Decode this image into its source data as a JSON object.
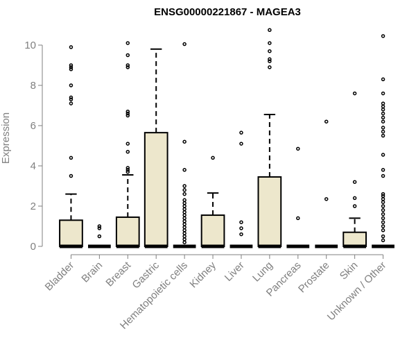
{
  "chart_data": {
    "type": "boxplot",
    "title": "ENSG00000221867 - MAGEA3",
    "xlabel": "",
    "ylabel": "Expression",
    "ylim": [
      0,
      10.8
    ],
    "yticks": [
      0,
      2,
      4,
      6,
      8,
      10
    ],
    "grid": false,
    "colors": {
      "box_fill": "#ede7cc",
      "box_stroke": "#000000",
      "axis": "#7f7f7f",
      "title": "#000000"
    },
    "categories": [
      "Bladder",
      "Brain",
      "Breast",
      "Gastric",
      "Hematopoietic cells",
      "Kidney",
      "Liver",
      "Lung",
      "Pancreas",
      "Prostate",
      "Skin",
      "Unknown / Other"
    ],
    "boxes": [
      {
        "category": "Bladder",
        "min": 0,
        "q1": 0,
        "median": 0,
        "q3": 1.3,
        "whisker_high": 2.6,
        "outliers": [
          3.5,
          4.4,
          7.1,
          7.3,
          7.4,
          8.0,
          8.8,
          8.9,
          9.0,
          9.9
        ]
      },
      {
        "category": "Brain",
        "min": 0,
        "q1": 0,
        "median": 0,
        "q3": 0,
        "whisker_high": 0,
        "outliers": [
          0.5,
          0.9,
          1.0
        ]
      },
      {
        "category": "Breast",
        "min": 0,
        "q1": 0,
        "median": 0,
        "q3": 1.45,
        "whisker_high": 3.55,
        "outliers": [
          3.7,
          3.8,
          3.9,
          4.7,
          5.1,
          6.5,
          6.6,
          6.7,
          8.9,
          9.0,
          9.5,
          10.1
        ]
      },
      {
        "category": "Gastric",
        "min": 0,
        "q1": 0,
        "median": 0,
        "q3": 5.65,
        "whisker_high": 9.8,
        "outliers": []
      },
      {
        "category": "Hematopoietic cells",
        "min": 0,
        "q1": 0,
        "median": 0,
        "q3": 0,
        "whisker_high": 0,
        "outliers": [
          0.2,
          0.35,
          0.5,
          0.65,
          0.8,
          0.95,
          1.1,
          1.25,
          1.4,
          1.55,
          1.7,
          1.85,
          2.0,
          2.15,
          2.3,
          2.6,
          2.8,
          3.0,
          3.8,
          5.2,
          10.05
        ]
      },
      {
        "category": "Kidney",
        "min": 0,
        "q1": 0,
        "median": 0,
        "q3": 1.55,
        "whisker_high": 2.65,
        "outliers": [
          4.4
        ]
      },
      {
        "category": "Liver",
        "min": 0,
        "q1": 0,
        "median": 0,
        "q3": 0,
        "whisker_high": 0,
        "outliers": [
          0.6,
          0.9,
          1.2,
          5.1,
          5.65
        ]
      },
      {
        "category": "Lung",
        "min": 0,
        "q1": 0,
        "median": 0,
        "q3": 3.45,
        "whisker_high": 6.55,
        "outliers": [
          8.9,
          9.2,
          9.3,
          9.7,
          10.1,
          10.75
        ]
      },
      {
        "category": "Pancreas",
        "min": 0,
        "q1": 0,
        "median": 0,
        "q3": 0,
        "whisker_high": 0,
        "outliers": [
          1.4,
          4.85
        ]
      },
      {
        "category": "Prostate",
        "min": 0,
        "q1": 0,
        "median": 0,
        "q3": 0,
        "whisker_high": 0,
        "outliers": [
          2.35,
          6.2
        ]
      },
      {
        "category": "Skin",
        "min": 0,
        "q1": 0,
        "median": 0,
        "q3": 0.7,
        "whisker_high": 1.4,
        "outliers": [
          2.0,
          2.4,
          3.2,
          7.6
        ]
      },
      {
        "category": "Unknown / Other",
        "min": 0,
        "q1": 0,
        "median": 0,
        "q3": 0,
        "whisker_high": 0,
        "outliers": [
          0.3,
          0.5,
          0.8,
          1.0,
          1.2,
          1.4,
          1.6,
          1.8,
          2.0,
          2.2,
          2.35,
          2.5,
          2.6,
          3.5,
          3.8,
          4.55,
          5.5,
          5.7,
          5.9,
          6.2,
          6.4,
          6.6,
          6.8,
          6.95,
          7.1,
          7.6,
          8.3,
          10.45
        ]
      }
    ]
  }
}
